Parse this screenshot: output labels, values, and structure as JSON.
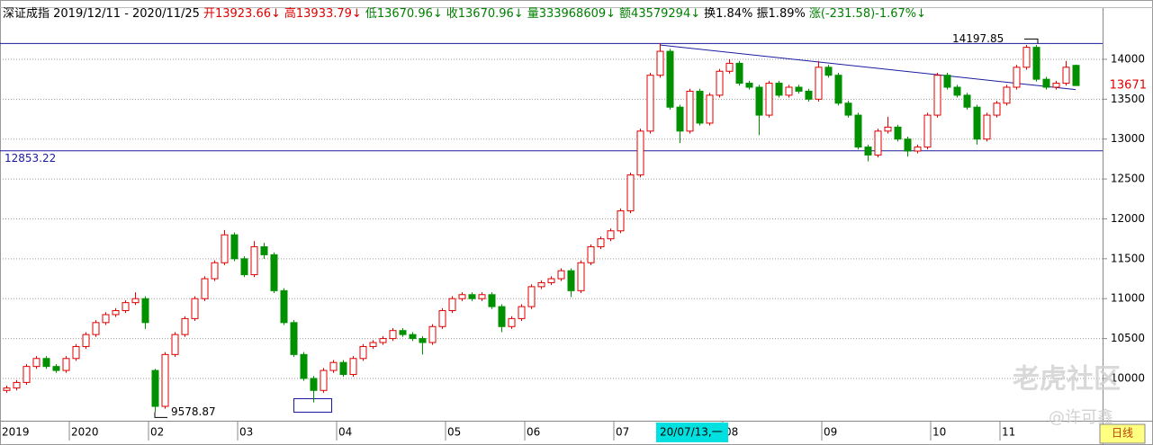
{
  "chart_data": {
    "type": "candlestick",
    "header": [
      {
        "text": "深证成指 2019/12/11 - 2020/11/25",
        "color": "#000000"
      },
      {
        "text": "开13923.66↓",
        "color": "#e00000"
      },
      {
        "text": "高13933.79↓",
        "color": "#e00000"
      },
      {
        "text": "低13670.96↓",
        "color": "#008000"
      },
      {
        "text": "收13670.96↓",
        "color": "#008000"
      },
      {
        "text": "量333968609↓",
        "color": "#008000"
      },
      {
        "text": "额43579294↓",
        "color": "#008000"
      },
      {
        "text": "换1.84% 振1.89%",
        "color": "#000000"
      },
      {
        "text": "涨(-231.58)-1.67%↓",
        "color": "#008000"
      }
    ],
    "up_color": "#e00000",
    "down_color": "#009000",
    "ylim": [
      9470,
      14653
    ],
    "yticks": [
      10000,
      10500,
      11000,
      11500,
      12000,
      12500,
      13000,
      13500,
      14000
    ],
    "grid": true,
    "x_labels": [
      {
        "label": "2019",
        "index": 0
      },
      {
        "label": "2020",
        "index": 7
      },
      {
        "label": "02",
        "index": 15
      },
      {
        "label": "03",
        "index": 24
      },
      {
        "label": "04",
        "index": 34
      },
      {
        "label": "05",
        "index": 45
      },
      {
        "label": "06",
        "index": 53
      },
      {
        "label": "07",
        "index": 62
      },
      {
        "label": "08",
        "index": 73
      },
      {
        "label": "09",
        "index": 83
      },
      {
        "label": "10",
        "index": 94
      },
      {
        "label": "11",
        "index": 101
      }
    ],
    "cursor_label": {
      "label": "20/07/13,一",
      "index": 66
    },
    "period_label": "日线",
    "last_price": {
      "label": "13671",
      "value": 13670.96
    },
    "high_mark": {
      "label": "14197.85",
      "value": 14197.85,
      "index": 66
    },
    "low_mark": {
      "label": "9578.87",
      "value": 9578.87,
      "index": 15
    },
    "level_lines": [
      {
        "value": 14197.85
      },
      {
        "value": 12853.22,
        "label": "12853.22"
      }
    ],
    "trend_line": {
      "start": [
        66,
        14180
      ],
      "end": [
        108,
        13620
      ]
    },
    "watermarks": [
      "老虎社区",
      "@许可鑫"
    ],
    "candles": [
      [
        9850,
        9910,
        9820,
        9880
      ],
      [
        9880,
        9980,
        9850,
        9950
      ],
      [
        9950,
        10180,
        9920,
        10150
      ],
      [
        10150,
        10280,
        10120,
        10250
      ],
      [
        10250,
        10280,
        10120,
        10150
      ],
      [
        10150,
        10180,
        10070,
        10100
      ],
      [
        10100,
        10280,
        10070,
        10250
      ],
      [
        10250,
        10430,
        10220,
        10400
      ],
      [
        10400,
        10580,
        10370,
        10550
      ],
      [
        10550,
        10730,
        10520,
        10700
      ],
      [
        10700,
        10830,
        10670,
        10800
      ],
      [
        10800,
        10880,
        10770,
        10850
      ],
      [
        10850,
        10980,
        10820,
        10950
      ],
      [
        10950,
        11080,
        10920,
        11000
      ],
      [
        11000,
        11030,
        10620,
        10700
      ],
      [
        10100,
        10120,
        9578.87,
        9650
      ],
      [
        9650,
        10330,
        9620,
        10300
      ],
      [
        10300,
        10580,
        10270,
        10550
      ],
      [
        10550,
        10780,
        10520,
        10750
      ],
      [
        10750,
        11030,
        10720,
        11000
      ],
      [
        11000,
        11280,
        10970,
        11250
      ],
      [
        11250,
        11480,
        11220,
        11450
      ],
      [
        11450,
        11860,
        11420,
        11800
      ],
      [
        11800,
        11830,
        11470,
        11500
      ],
      [
        11500,
        11530,
        11270,
        11300
      ],
      [
        11300,
        11720,
        11270,
        11650
      ],
      [
        11650,
        11700,
        11500,
        11550
      ],
      [
        11550,
        11580,
        11070,
        11100
      ],
      [
        11100,
        11130,
        10670,
        10700
      ],
      [
        10700,
        10730,
        10270,
        10300
      ],
      [
        10300,
        10330,
        9970,
        10000
      ],
      [
        10000,
        10030,
        9700,
        9850
      ],
      [
        9850,
        10130,
        9820,
        10100
      ],
      [
        10100,
        10230,
        10070,
        10200
      ],
      [
        10200,
        10230,
        10020,
        10050
      ],
      [
        10050,
        10280,
        10020,
        10250
      ],
      [
        10250,
        10430,
        10220,
        10400
      ],
      [
        10400,
        10480,
        10370,
        10450
      ],
      [
        10450,
        10530,
        10420,
        10500
      ],
      [
        10500,
        10630,
        10470,
        10600
      ],
      [
        10600,
        10630,
        10520,
        10550
      ],
      [
        10550,
        10580,
        10470,
        10500
      ],
      [
        10500,
        10530,
        10300,
        10450
      ],
      [
        10450,
        10680,
        10420,
        10650
      ],
      [
        10650,
        10880,
        10620,
        10850
      ],
      [
        10850,
        11030,
        10820,
        11000
      ],
      [
        11000,
        11080,
        10970,
        11050
      ],
      [
        11050,
        11080,
        10970,
        11000
      ],
      [
        11000,
        11080,
        10970,
        11050
      ],
      [
        11050,
        11080,
        10870,
        10900
      ],
      [
        10900,
        10930,
        10580,
        10650
      ],
      [
        10650,
        10780,
        10620,
        10750
      ],
      [
        10750,
        10930,
        10720,
        10900
      ],
      [
        10900,
        11180,
        10870,
        11150
      ],
      [
        11150,
        11230,
        11120,
        11200
      ],
      [
        11200,
        11280,
        11170,
        11250
      ],
      [
        11250,
        11380,
        11220,
        11350
      ],
      [
        11350,
        11380,
        11020,
        11100
      ],
      [
        11100,
        11480,
        11070,
        11450
      ],
      [
        11450,
        11680,
        11420,
        11650
      ],
      [
        11650,
        11780,
        11620,
        11750
      ],
      [
        11750,
        11880,
        11720,
        11850
      ],
      [
        11850,
        12130,
        11820,
        12100
      ],
      [
        12100,
        12580,
        12070,
        12550
      ],
      [
        12550,
        13130,
        12520,
        13100
      ],
      [
        13100,
        13830,
        13070,
        13800
      ],
      [
        13800,
        14197.85,
        13770,
        14100
      ],
      [
        14100,
        14130,
        13370,
        13400
      ],
      [
        13400,
        13430,
        12950,
        13100
      ],
      [
        13100,
        13630,
        13070,
        13600
      ],
      [
        13600,
        13630,
        13170,
        13200
      ],
      [
        13200,
        13580,
        13170,
        13550
      ],
      [
        13550,
        13880,
        13520,
        13850
      ],
      [
        13850,
        14000,
        13820,
        13950
      ],
      [
        13950,
        13980,
        13670,
        13700
      ],
      [
        13700,
        13730,
        13620,
        13650
      ],
      [
        13650,
        13680,
        13050,
        13300
      ],
      [
        13300,
        13730,
        13270,
        13700
      ],
      [
        13700,
        13730,
        13520,
        13550
      ],
      [
        13550,
        13680,
        13520,
        13650
      ],
      [
        13650,
        13680,
        13570,
        13600
      ],
      [
        13600,
        13630,
        13470,
        13500
      ],
      [
        13500,
        13980,
        13470,
        13900
      ],
      [
        13900,
        13930,
        13770,
        13800
      ],
      [
        13800,
        13830,
        13420,
        13450
      ],
      [
        13450,
        13480,
        13270,
        13300
      ],
      [
        13300,
        13330,
        12870,
        12900
      ],
      [
        12900,
        12930,
        12720,
        12800
      ],
      [
        12800,
        13130,
        12770,
        13100
      ],
      [
        13100,
        13280,
        13070,
        13150
      ],
      [
        13150,
        13180,
        12970,
        13000
      ],
      [
        13000,
        13030,
        12780,
        12850
      ],
      [
        12850,
        12930,
        12820,
        12900
      ],
      [
        12900,
        13330,
        12870,
        13300
      ],
      [
        13300,
        13830,
        13270,
        13800
      ],
      [
        13800,
        13830,
        13620,
        13650
      ],
      [
        13650,
        13680,
        13520,
        13550
      ],
      [
        13550,
        13580,
        13370,
        13400
      ],
      [
        13400,
        13430,
        12930,
        13000
      ],
      [
        13000,
        13330,
        12970,
        13300
      ],
      [
        13300,
        13480,
        13270,
        13450
      ],
      [
        13450,
        13680,
        13420,
        13650
      ],
      [
        13650,
        13930,
        13620,
        13900
      ],
      [
        13900,
        14180,
        13870,
        14150
      ],
      [
        14150,
        14180,
        13720,
        13750
      ],
      [
        13750,
        13780,
        13620,
        13650
      ],
      [
        13650,
        13730,
        13620,
        13700
      ],
      [
        13700,
        13980,
        13670,
        13900
      ],
      [
        13923.66,
        13933.79,
        13670.96,
        13670.96
      ]
    ]
  }
}
